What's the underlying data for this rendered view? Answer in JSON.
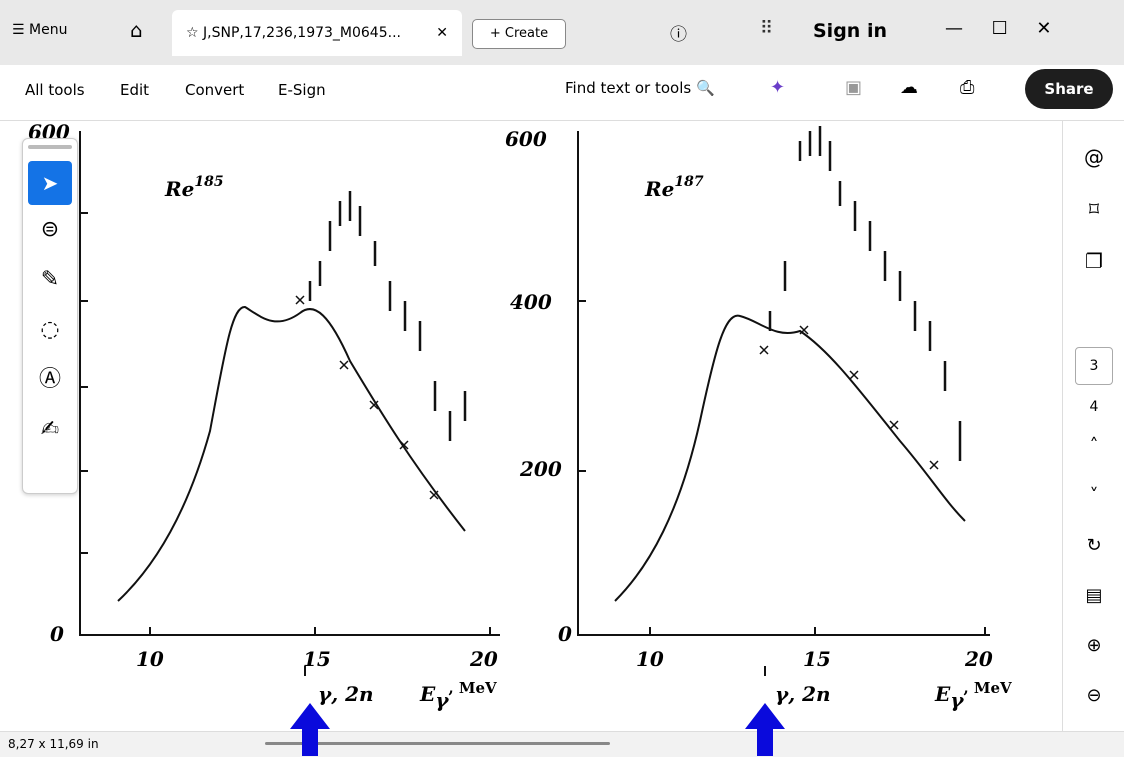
{
  "tab_bar": {
    "menu": "Menu",
    "tab_title": "J,SNP,17,236,1973_M0645...",
    "create": "Create",
    "sign_in": "Sign in"
  },
  "toolbar": {
    "items": [
      "All tools",
      "Edit",
      "Convert",
      "E-Sign"
    ],
    "search": "Find text or tools",
    "share": "Share"
  },
  "page_nav": {
    "current": "3",
    "next": "4"
  },
  "status": "8,27 x 11,69 in",
  "document": {
    "panels": [
      {
        "element": "Re",
        "mass": "185",
        "yticks": [
          "600",
          "0"
        ],
        "xticks": [
          "10",
          "15",
          "20"
        ],
        "threshold_label": "γ, 2n",
        "x_label": "E",
        "x_sub": "γ",
        "x_unit": ", MeV"
      },
      {
        "element": "Re",
        "mass": "187",
        "yticks": [
          "600",
          "400",
          "200",
          "0"
        ],
        "xticks": [
          "10",
          "15",
          "20"
        ],
        "threshold_label": "γ, 2n",
        "x_label": "E",
        "x_sub": "γ",
        "x_unit": ", MeV"
      }
    ]
  }
}
